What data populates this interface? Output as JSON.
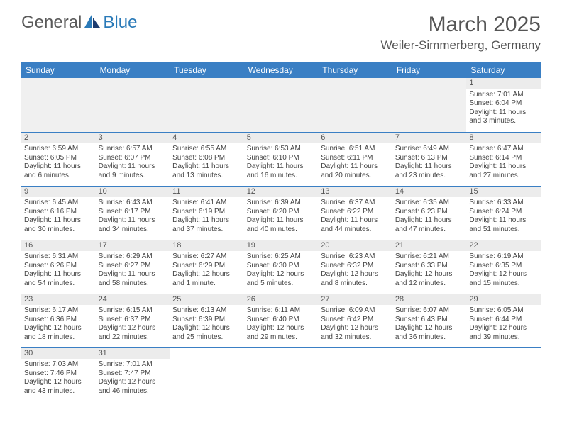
{
  "logo": {
    "part1": "General",
    "part2": "Blue"
  },
  "title": "March 2025",
  "location": "Weiler-Simmerberg, Germany",
  "colors": {
    "header_bg": "#3a7fc4",
    "header_text": "#ffffff",
    "daynum_bg": "#ececec",
    "empty_bg": "#f0f0f0",
    "border": "#3a7fc4",
    "text": "#444444",
    "logo_gray": "#5a5a5a",
    "logo_blue": "#2a7ab8"
  },
  "day_headers": [
    "Sunday",
    "Monday",
    "Tuesday",
    "Wednesday",
    "Thursday",
    "Friday",
    "Saturday"
  ],
  "weeks": [
    [
      null,
      null,
      null,
      null,
      null,
      null,
      {
        "n": "1",
        "sr": "Sunrise: 7:01 AM",
        "ss": "Sunset: 6:04 PM",
        "d1": "Daylight: 11 hours",
        "d2": "and 3 minutes."
      }
    ],
    [
      {
        "n": "2",
        "sr": "Sunrise: 6:59 AM",
        "ss": "Sunset: 6:05 PM",
        "d1": "Daylight: 11 hours",
        "d2": "and 6 minutes."
      },
      {
        "n": "3",
        "sr": "Sunrise: 6:57 AM",
        "ss": "Sunset: 6:07 PM",
        "d1": "Daylight: 11 hours",
        "d2": "and 9 minutes."
      },
      {
        "n": "4",
        "sr": "Sunrise: 6:55 AM",
        "ss": "Sunset: 6:08 PM",
        "d1": "Daylight: 11 hours",
        "d2": "and 13 minutes."
      },
      {
        "n": "5",
        "sr": "Sunrise: 6:53 AM",
        "ss": "Sunset: 6:10 PM",
        "d1": "Daylight: 11 hours",
        "d2": "and 16 minutes."
      },
      {
        "n": "6",
        "sr": "Sunrise: 6:51 AM",
        "ss": "Sunset: 6:11 PM",
        "d1": "Daylight: 11 hours",
        "d2": "and 20 minutes."
      },
      {
        "n": "7",
        "sr": "Sunrise: 6:49 AM",
        "ss": "Sunset: 6:13 PM",
        "d1": "Daylight: 11 hours",
        "d2": "and 23 minutes."
      },
      {
        "n": "8",
        "sr": "Sunrise: 6:47 AM",
        "ss": "Sunset: 6:14 PM",
        "d1": "Daylight: 11 hours",
        "d2": "and 27 minutes."
      }
    ],
    [
      {
        "n": "9",
        "sr": "Sunrise: 6:45 AM",
        "ss": "Sunset: 6:16 PM",
        "d1": "Daylight: 11 hours",
        "d2": "and 30 minutes."
      },
      {
        "n": "10",
        "sr": "Sunrise: 6:43 AM",
        "ss": "Sunset: 6:17 PM",
        "d1": "Daylight: 11 hours",
        "d2": "and 34 minutes."
      },
      {
        "n": "11",
        "sr": "Sunrise: 6:41 AM",
        "ss": "Sunset: 6:19 PM",
        "d1": "Daylight: 11 hours",
        "d2": "and 37 minutes."
      },
      {
        "n": "12",
        "sr": "Sunrise: 6:39 AM",
        "ss": "Sunset: 6:20 PM",
        "d1": "Daylight: 11 hours",
        "d2": "and 40 minutes."
      },
      {
        "n": "13",
        "sr": "Sunrise: 6:37 AM",
        "ss": "Sunset: 6:22 PM",
        "d1": "Daylight: 11 hours",
        "d2": "and 44 minutes."
      },
      {
        "n": "14",
        "sr": "Sunrise: 6:35 AM",
        "ss": "Sunset: 6:23 PM",
        "d1": "Daylight: 11 hours",
        "d2": "and 47 minutes."
      },
      {
        "n": "15",
        "sr": "Sunrise: 6:33 AM",
        "ss": "Sunset: 6:24 PM",
        "d1": "Daylight: 11 hours",
        "d2": "and 51 minutes."
      }
    ],
    [
      {
        "n": "16",
        "sr": "Sunrise: 6:31 AM",
        "ss": "Sunset: 6:26 PM",
        "d1": "Daylight: 11 hours",
        "d2": "and 54 minutes."
      },
      {
        "n": "17",
        "sr": "Sunrise: 6:29 AM",
        "ss": "Sunset: 6:27 PM",
        "d1": "Daylight: 11 hours",
        "d2": "and 58 minutes."
      },
      {
        "n": "18",
        "sr": "Sunrise: 6:27 AM",
        "ss": "Sunset: 6:29 PM",
        "d1": "Daylight: 12 hours",
        "d2": "and 1 minute."
      },
      {
        "n": "19",
        "sr": "Sunrise: 6:25 AM",
        "ss": "Sunset: 6:30 PM",
        "d1": "Daylight: 12 hours",
        "d2": "and 5 minutes."
      },
      {
        "n": "20",
        "sr": "Sunrise: 6:23 AM",
        "ss": "Sunset: 6:32 PM",
        "d1": "Daylight: 12 hours",
        "d2": "and 8 minutes."
      },
      {
        "n": "21",
        "sr": "Sunrise: 6:21 AM",
        "ss": "Sunset: 6:33 PM",
        "d1": "Daylight: 12 hours",
        "d2": "and 12 minutes."
      },
      {
        "n": "22",
        "sr": "Sunrise: 6:19 AM",
        "ss": "Sunset: 6:35 PM",
        "d1": "Daylight: 12 hours",
        "d2": "and 15 minutes."
      }
    ],
    [
      {
        "n": "23",
        "sr": "Sunrise: 6:17 AM",
        "ss": "Sunset: 6:36 PM",
        "d1": "Daylight: 12 hours",
        "d2": "and 18 minutes."
      },
      {
        "n": "24",
        "sr": "Sunrise: 6:15 AM",
        "ss": "Sunset: 6:37 PM",
        "d1": "Daylight: 12 hours",
        "d2": "and 22 minutes."
      },
      {
        "n": "25",
        "sr": "Sunrise: 6:13 AM",
        "ss": "Sunset: 6:39 PM",
        "d1": "Daylight: 12 hours",
        "d2": "and 25 minutes."
      },
      {
        "n": "26",
        "sr": "Sunrise: 6:11 AM",
        "ss": "Sunset: 6:40 PM",
        "d1": "Daylight: 12 hours",
        "d2": "and 29 minutes."
      },
      {
        "n": "27",
        "sr": "Sunrise: 6:09 AM",
        "ss": "Sunset: 6:42 PM",
        "d1": "Daylight: 12 hours",
        "d2": "and 32 minutes."
      },
      {
        "n": "28",
        "sr": "Sunrise: 6:07 AM",
        "ss": "Sunset: 6:43 PM",
        "d1": "Daylight: 12 hours",
        "d2": "and 36 minutes."
      },
      {
        "n": "29",
        "sr": "Sunrise: 6:05 AM",
        "ss": "Sunset: 6:44 PM",
        "d1": "Daylight: 12 hours",
        "d2": "and 39 minutes."
      }
    ],
    [
      {
        "n": "30",
        "sr": "Sunrise: 7:03 AM",
        "ss": "Sunset: 7:46 PM",
        "d1": "Daylight: 12 hours",
        "d2": "and 43 minutes."
      },
      {
        "n": "31",
        "sr": "Sunrise: 7:01 AM",
        "ss": "Sunset: 7:47 PM",
        "d1": "Daylight: 12 hours",
        "d2": "and 46 minutes."
      },
      null,
      null,
      null,
      null,
      null
    ]
  ]
}
